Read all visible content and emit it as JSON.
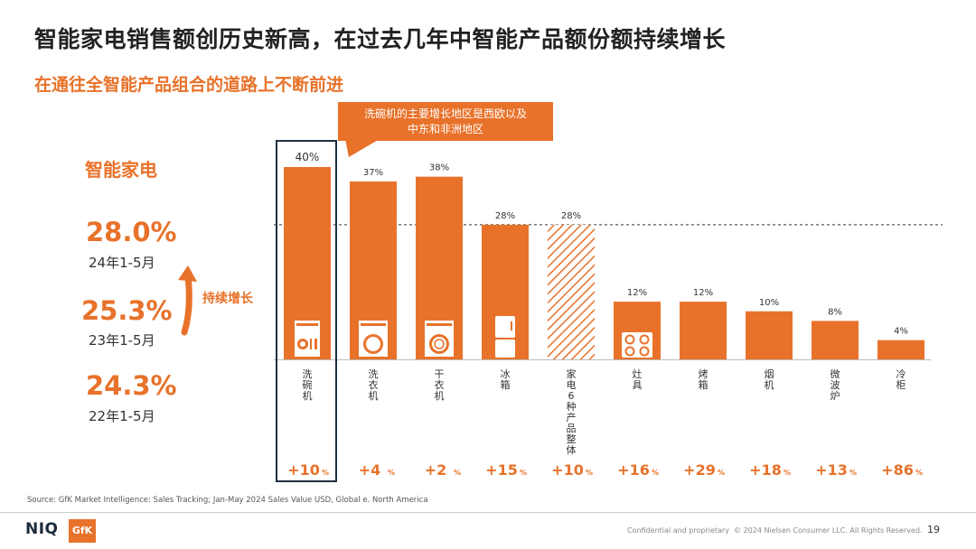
{
  "header": {
    "title": "智能家电销售额创历史新高，在过去几年中智能产品额份额持续增长",
    "subtitle": "在通往全智能产品组合的道路上不断前进"
  },
  "callout": {
    "line1": "洗碗机的主要增长地区是西欧以及",
    "line2": "中东和非洲地区"
  },
  "summary": {
    "label": "智能家电",
    "trend_label": "持续增长",
    "stats": [
      {
        "value": "28.0%",
        "period": "24年1-5月"
      },
      {
        "value": "25.3%",
        "period": "23年1-5月"
      },
      {
        "value": "24.3%",
        "period": "22年1-5月"
      }
    ]
  },
  "chart_data": {
    "type": "bar",
    "categories": [
      "洗碗机",
      "洗衣机",
      "干衣机",
      "冰箱",
      "家电6种产品整体",
      "灶具",
      "烤箱",
      "烟机",
      "微波炉",
      "冷柜"
    ],
    "values": [
      40,
      37,
      38,
      28,
      28,
      12,
      12,
      10,
      8,
      4
    ],
    "value_labels": [
      "40%",
      "37%",
      "38%",
      "28%",
      "28%",
      "12%",
      "12%",
      "10%",
      "8%",
      "4%"
    ],
    "growth": [
      "+10",
      "+4",
      "+2",
      "+15",
      "+10",
      "+16",
      "+29",
      "+18",
      "+13",
      "+86"
    ],
    "growth_unit": "%",
    "hatched_category": "家电6种产品整体",
    "highlighted_category": "洗碗机",
    "reference_line_value": 28,
    "icons": {
      "洗碗机": "dishwasher-icon",
      "洗衣机": "washing-machine-icon",
      "干衣机": "dryer-icon",
      "冰箱": "refrigerator-icon",
      "灶具": "cooktop-icon"
    },
    "ylim": [
      0,
      40
    ],
    "grid": false,
    "legend": "none",
    "colors": {
      "bar": "#E8722A",
      "highlight_box": "#1F2F3F",
      "reference_line": "#333333"
    }
  },
  "footer": {
    "source": "Source: GfK Market Intelligence: Sales Tracking; Jan-May 2024 Sales Value USD, Global e. North America",
    "logo_niq": "NIQ",
    "logo_gfk": "GfK",
    "confidential": "Confidential and proprietary",
    "copyright": "© 2024 Nielsen Consumer LLC. All Rights Reserved.",
    "page_number": "19"
  }
}
